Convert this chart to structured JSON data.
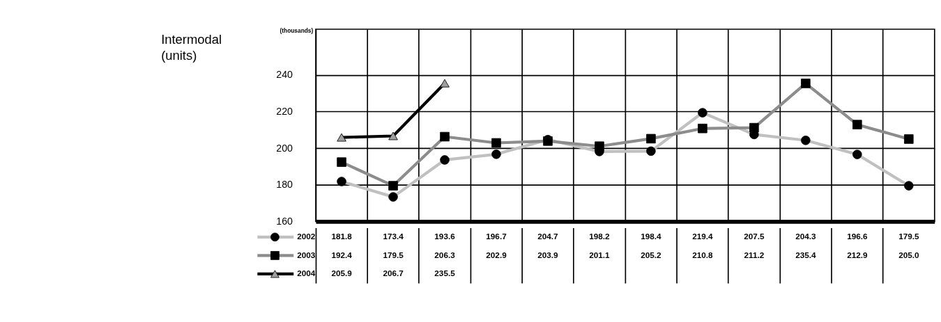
{
  "chart_data": {
    "type": "line",
    "title": "Intermodal\n(units)",
    "ylabel": "(thousands)",
    "categories": [
      null,
      null,
      null,
      null,
      null,
      null,
      null,
      null,
      null,
      null,
      null,
      null
    ],
    "series": [
      {
        "name": "2002",
        "color": "#c0c0c0",
        "marker": "circle",
        "values": [
          181.8,
          173.4,
          193.6,
          196.7,
          204.7,
          198.2,
          198.4,
          219.4,
          207.5,
          204.3,
          196.6,
          179.5
        ],
        "value_labels": [
          "181.8",
          "173.4",
          "193.6",
          "196.7",
          "204.7",
          "198.2",
          "198.4",
          "219.4",
          "207.5",
          "204.3",
          "196.6",
          "179.5"
        ]
      },
      {
        "name": "2003",
        "color": "#8c8c8c",
        "marker": "square",
        "values": [
          192.4,
          179.5,
          206.3,
          202.9,
          203.9,
          201.1,
          205.2,
          210.8,
          211.2,
          235.4,
          212.9,
          205.0
        ],
        "value_labels": [
          "192.4",
          "179.5",
          "206.3",
          "202.9",
          "203.9",
          "201.1",
          "205.2",
          "210.8",
          "211.2",
          "235.4",
          "212.9",
          "205.0"
        ]
      },
      {
        "name": "2004",
        "color": "#000000",
        "marker": "triangle",
        "values": [
          205.9,
          206.7,
          235.5,
          null,
          null,
          null,
          null,
          null,
          null,
          null,
          null,
          null
        ],
        "value_labels": [
          "205.9",
          "206.7",
          "235.5",
          null,
          null,
          null,
          null,
          null,
          null,
          null,
          null,
          null
        ]
      }
    ],
    "ylim": [
      160,
      265
    ],
    "yticks": [
      160,
      180,
      200,
      220,
      240
    ],
    "grid": true,
    "legend": "bottom left"
  }
}
